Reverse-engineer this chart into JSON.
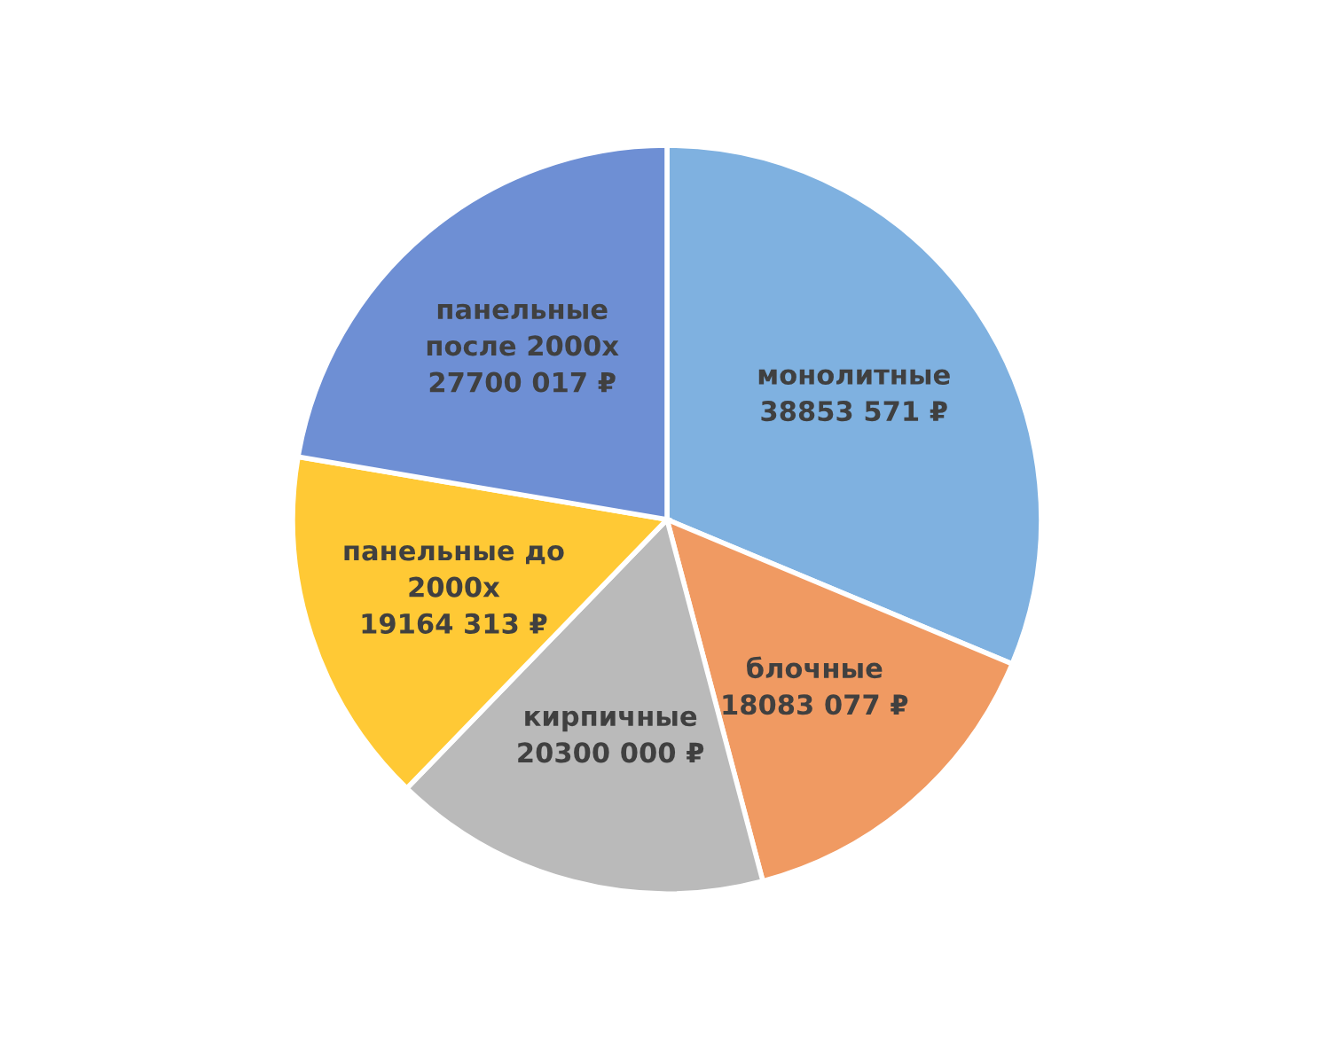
{
  "chart_data": {
    "type": "pie",
    "categories": [
      "монолитные",
      "блочные",
      "кирпичные",
      "панельные до\n2000х",
      "панельные\nпосле 2000х"
    ],
    "values": [
      38853571,
      18083077,
      20300000,
      19164313,
      27700017
    ],
    "value_labels": [
      "38853 571 ₽",
      "18083 077 ₽",
      "20300 000 ₽",
      "19164 313 ₽",
      "27700 017 ₽"
    ],
    "colors": [
      "#7fb1e0",
      "#f09a62",
      "#bababa",
      "#ffc935",
      "#6e8fd4"
    ],
    "legend": false
  }
}
